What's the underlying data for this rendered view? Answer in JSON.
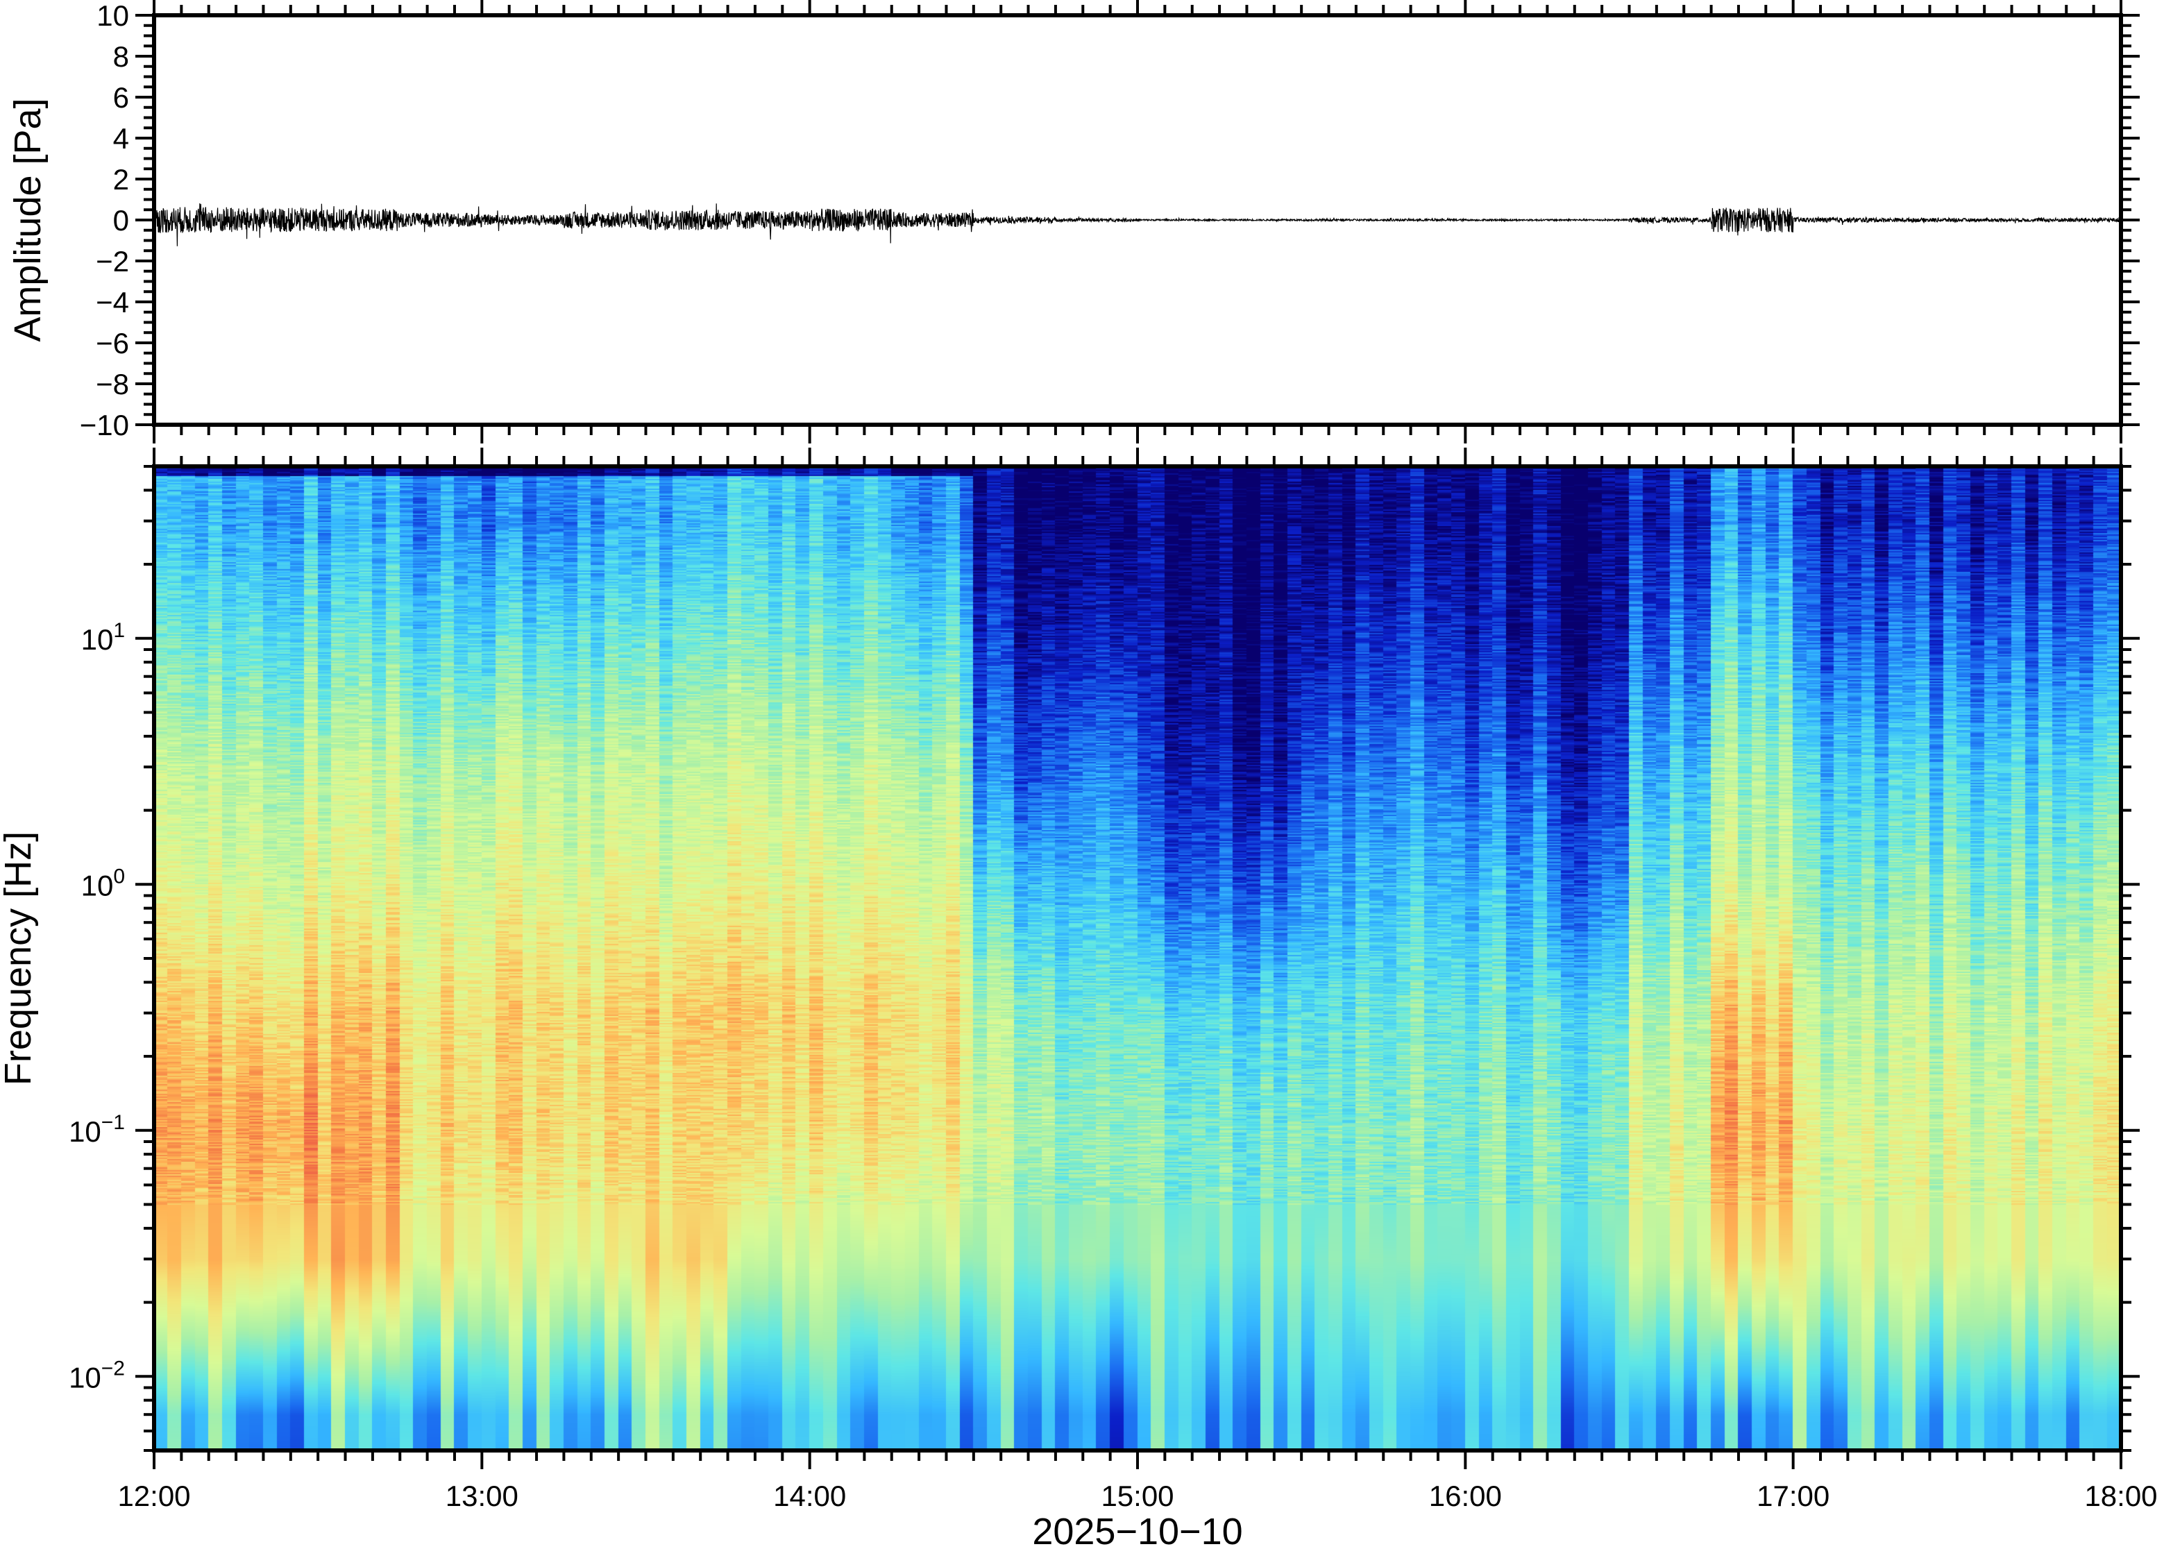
{
  "chart_data": [
    {
      "type": "line",
      "panel": "waveform",
      "ylabel": "Amplitude [Pa]",
      "ylim": [
        -10,
        10
      ],
      "y_ticks": [
        "10",
        "8",
        "6",
        "4",
        "2",
        "0",
        "−2",
        "−4",
        "−6",
        "−8",
        "−10"
      ],
      "y_tick_values": [
        10,
        8,
        6,
        4,
        2,
        0,
        -2,
        -4,
        -6,
        -8,
        -10
      ],
      "xlim": [
        "12:00",
        "18:00"
      ],
      "grid": false,
      "line_color": "#000000",
      "envelope_times": [
        "12:00",
        "12:15",
        "12:30",
        "12:45",
        "13:00",
        "13:15",
        "13:30",
        "13:45",
        "14:00",
        "14:15",
        "14:30",
        "14:45",
        "15:00",
        "15:15",
        "15:30",
        "15:45",
        "16:00",
        "16:15",
        "16:30",
        "16:45",
        "17:00",
        "17:15",
        "17:30",
        "17:45"
      ],
      "envelope_amplitude_pa": [
        0.65,
        0.6,
        0.55,
        0.35,
        0.25,
        0.4,
        0.5,
        0.45,
        0.55,
        0.35,
        0.15,
        0.08,
        0.04,
        0.04,
        0.05,
        0.05,
        0.04,
        0.04,
        0.12,
        0.6,
        0.12,
        0.1,
        0.08,
        0.1
      ],
      "max_peak_pa": 1.5
    },
    {
      "type": "heatmap",
      "panel": "spectrogram",
      "ylabel": "Frequency [Hz]",
      "xlabel": "2025−10−10",
      "y_scale": "log",
      "ylim": [
        0.005,
        50
      ],
      "y_ticks": [
        {
          "base": "10",
          "exp": "1",
          "value": 10
        },
        {
          "base": "10",
          "exp": "0",
          "value": 1
        },
        {
          "base": "10",
          "exp": "−1",
          "value": 0.1
        },
        {
          "base": "10",
          "exp": "−2",
          "value": 0.01
        }
      ],
      "x_ticks": [
        "12:00",
        "13:00",
        "14:00",
        "15:00",
        "16:00",
        "17:00",
        "18:00"
      ],
      "xlim": [
        "12:00",
        "18:00"
      ],
      "colormap": [
        "#08006e",
        "#0b1fc8",
        "#1a6bf0",
        "#35b8ff",
        "#5ee6e6",
        "#a8f0a8",
        "#d8fa96",
        "#f2e67a",
        "#ffb455",
        "#f47a45",
        "#e84848"
      ],
      "grid": false,
      "frequency_bands_hz": [
        0.007,
        0.03,
        0.1,
        0.3,
        1,
        3,
        10,
        30
      ],
      "times": [
        "12:00",
        "12:15",
        "12:30",
        "12:45",
        "13:00",
        "13:15",
        "13:30",
        "13:45",
        "14:00",
        "14:15",
        "14:30",
        "14:45",
        "15:00",
        "15:15",
        "15:30",
        "15:45",
        "16:00",
        "16:15",
        "16:30",
        "16:45",
        "17:00",
        "17:15",
        "17:30",
        "17:45"
      ],
      "relative_power": [
        [
          0.35,
          0.75,
          0.82,
          0.75,
          0.62,
          0.55,
          0.42,
          0.3
        ],
        [
          0.3,
          0.75,
          0.85,
          0.75,
          0.62,
          0.55,
          0.42,
          0.3
        ],
        [
          0.35,
          0.78,
          0.8,
          0.75,
          0.62,
          0.55,
          0.4,
          0.28
        ],
        [
          0.3,
          0.65,
          0.72,
          0.7,
          0.6,
          0.52,
          0.38,
          0.25
        ],
        [
          0.35,
          0.62,
          0.72,
          0.72,
          0.62,
          0.55,
          0.38,
          0.22
        ],
        [
          0.35,
          0.65,
          0.72,
          0.72,
          0.62,
          0.55,
          0.4,
          0.27
        ],
        [
          0.4,
          0.72,
          0.72,
          0.75,
          0.62,
          0.55,
          0.42,
          0.3
        ],
        [
          0.3,
          0.55,
          0.68,
          0.72,
          0.62,
          0.55,
          0.42,
          0.32
        ],
        [
          0.3,
          0.55,
          0.7,
          0.72,
          0.62,
          0.55,
          0.42,
          0.32
        ],
        [
          0.3,
          0.55,
          0.68,
          0.7,
          0.6,
          0.52,
          0.38,
          0.25
        ],
        [
          0.3,
          0.5,
          0.55,
          0.5,
          0.35,
          0.2,
          0.1,
          0.03
        ],
        [
          0.25,
          0.5,
          0.5,
          0.45,
          0.35,
          0.25,
          0.12,
          0.04
        ],
        [
          0.3,
          0.45,
          0.45,
          0.38,
          0.2,
          0.1,
          0.04,
          0.02
        ],
        [
          0.3,
          0.45,
          0.45,
          0.38,
          0.2,
          0.08,
          0.04,
          0.02
        ],
        [
          0.3,
          0.45,
          0.45,
          0.4,
          0.3,
          0.2,
          0.1,
          0.03
        ],
        [
          0.3,
          0.45,
          0.45,
          0.42,
          0.32,
          0.22,
          0.12,
          0.04
        ],
        [
          0.3,
          0.45,
          0.45,
          0.4,
          0.3,
          0.18,
          0.08,
          0.03
        ],
        [
          0.3,
          0.45,
          0.45,
          0.4,
          0.22,
          0.12,
          0.06,
          0.02
        ],
        [
          0.35,
          0.6,
          0.6,
          0.55,
          0.42,
          0.32,
          0.2,
          0.1
        ],
        [
          0.35,
          0.72,
          0.82,
          0.75,
          0.58,
          0.5,
          0.38,
          0.25
        ],
        [
          0.35,
          0.6,
          0.62,
          0.55,
          0.45,
          0.35,
          0.2,
          0.1
        ],
        [
          0.35,
          0.6,
          0.6,
          0.55,
          0.45,
          0.35,
          0.2,
          0.08
        ],
        [
          0.35,
          0.62,
          0.6,
          0.55,
          0.45,
          0.35,
          0.2,
          0.08
        ],
        [
          0.3,
          0.62,
          0.65,
          0.6,
          0.48,
          0.38,
          0.22,
          0.1
        ]
      ]
    }
  ]
}
